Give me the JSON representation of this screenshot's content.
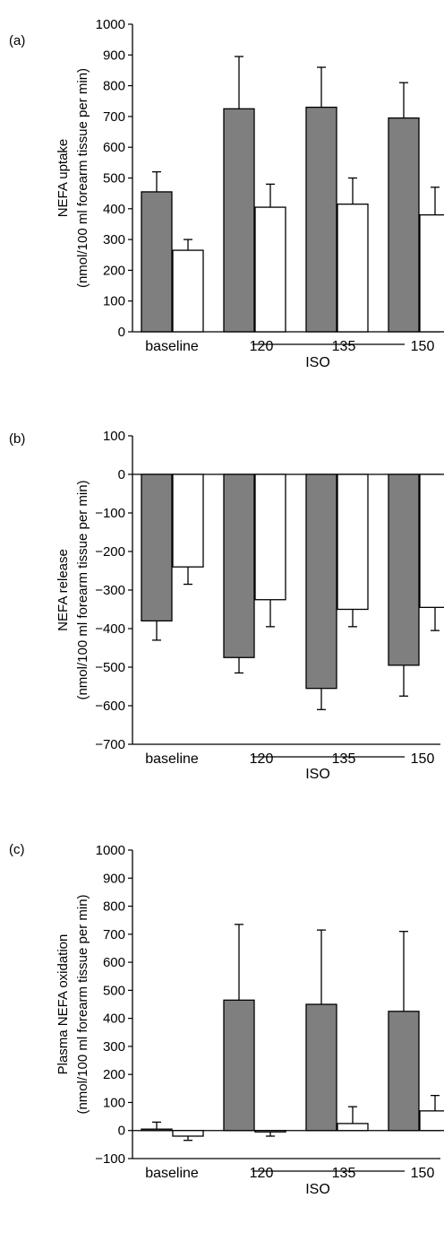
{
  "chart_data": [
    {
      "type": "bar",
      "panel_label": "(a)",
      "ylabel_lines": [
        "NEFA uptake",
        "(nmol/100 ml forearm tissue per min)"
      ],
      "categories": [
        "baseline",
        "120",
        "135",
        "150"
      ],
      "group_label": "ISO",
      "ylim": [
        0,
        1000
      ],
      "yticks": [
        0,
        100,
        200,
        300,
        400,
        500,
        600,
        700,
        800,
        900,
        1000
      ],
      "series": [
        {
          "color": "#7f7f7f",
          "values": [
            455,
            725,
            730,
            695
          ],
          "errors": [
            65,
            170,
            130,
            115
          ]
        },
        {
          "color": "#ffffff",
          "values": [
            265,
            405,
            415,
            380
          ],
          "errors": [
            35,
            75,
            85,
            90
          ]
        }
      ]
    },
    {
      "type": "bar",
      "panel_label": "(b)",
      "ylabel_lines": [
        "NEFA release",
        "(nmol/100 ml forearm tissue per min)"
      ],
      "categories": [
        "baseline",
        "120",
        "135",
        "150"
      ],
      "group_label": "ISO",
      "ylim": [
        -700,
        100
      ],
      "yticks": [
        -700,
        -600,
        -500,
        -400,
        -300,
        -200,
        -100,
        0,
        100
      ],
      "series": [
        {
          "color": "#7f7f7f",
          "values": [
            -380,
            -475,
            -555,
            -495
          ],
          "errors": [
            50,
            40,
            55,
            80
          ]
        },
        {
          "color": "#ffffff",
          "values": [
            -240,
            -325,
            -350,
            -345
          ],
          "errors": [
            45,
            70,
            45,
            60
          ]
        }
      ]
    },
    {
      "type": "bar",
      "panel_label": "(c)",
      "ylabel_lines": [
        "Plasma NEFA oxidation",
        "(nmol/100 ml forearm tissue per min)"
      ],
      "categories": [
        "baseline",
        "120",
        "135",
        "150"
      ],
      "group_label": "ISO",
      "ylim": [
        -100,
        1000
      ],
      "yticks": [
        -100,
        0,
        100,
        200,
        300,
        400,
        500,
        600,
        700,
        800,
        900,
        1000
      ],
      "series": [
        {
          "color": "#7f7f7f",
          "values": [
            5,
            465,
            450,
            425
          ],
          "errors": [
            25,
            270,
            265,
            285
          ]
        },
        {
          "color": "#ffffff",
          "values": [
            -20,
            -5,
            25,
            70
          ],
          "errors": [
            15,
            15,
            60,
            55
          ]
        }
      ]
    }
  ]
}
